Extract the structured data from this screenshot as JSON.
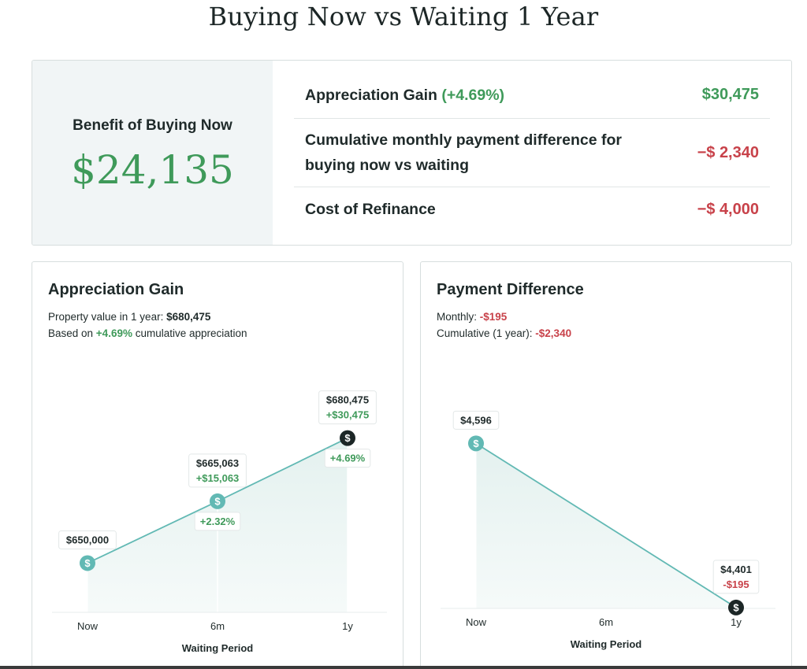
{
  "page": {
    "title": "Buying Now vs Waiting 1 Year"
  },
  "summary": {
    "benefit_label": "Benefit of Buying Now",
    "benefit_value": "$24,135",
    "rows": [
      {
        "label": "Appreciation Gain",
        "label_pct": "(+4.69%)",
        "value": "$30,475",
        "tone": "positive"
      },
      {
        "label": "Cumulative monthly payment difference for buying now vs waiting",
        "label_pct": "",
        "value": "−$ 2,340",
        "tone": "negative"
      },
      {
        "label": "Cost of Refinance",
        "label_pct": "",
        "value": "−$ 4,000",
        "tone": "negative"
      }
    ]
  },
  "appreciation": {
    "title": "Appreciation Gain",
    "line1_prefix": "Property value in 1 year: ",
    "line1_value": "$680,475",
    "line2_prefix": "Based on ",
    "line2_pct": "+4.69%",
    "line2_suffix": " cumulative appreciation"
  },
  "payment": {
    "title": "Payment Difference",
    "line1_prefix": "Monthly: ",
    "line1_value": "-$195",
    "line2_prefix": "Cumulative (1 year): ",
    "line2_value": "-$2,340"
  },
  "chart_data": [
    {
      "type": "area",
      "x_label": "Waiting Period",
      "categories": [
        "Now",
        "6m",
        "1y"
      ],
      "values": [
        650000,
        665063,
        680475
      ],
      "value_labels": [
        "$650,000",
        "$665,063",
        "$680,475"
      ],
      "gain_labels": [
        "",
        "+$15,063",
        "+$30,475"
      ],
      "pct_labels": [
        "",
        "+2.32%",
        "+4.69%"
      ],
      "ylim": [
        638000,
        685000
      ],
      "marker_icon": "dollar-icon",
      "colors": {
        "line": "#62b9b4",
        "fill": "#e4f1ef",
        "marker": "#62b9b4",
        "marker_final": "#1c2626",
        "gain": "#3f9a5a"
      }
    },
    {
      "type": "area",
      "x_label": "Waiting Period",
      "categories": [
        "Now",
        "6m",
        "1y"
      ],
      "points": [
        {
          "x": "Now",
          "y": 4596,
          "label": "$4,596",
          "delta": ""
        },
        {
          "x": "1y",
          "y": 4401,
          "label": "$4,401",
          "delta": "-$195"
        }
      ],
      "ylim": [
        4400,
        4615
      ],
      "marker_icon": "dollar-icon",
      "colors": {
        "line": "#62b9b4",
        "fill": "#e4f1ef",
        "marker": "#62b9b4",
        "marker_final": "#1c2626",
        "delta": "#c8424a"
      }
    }
  ]
}
